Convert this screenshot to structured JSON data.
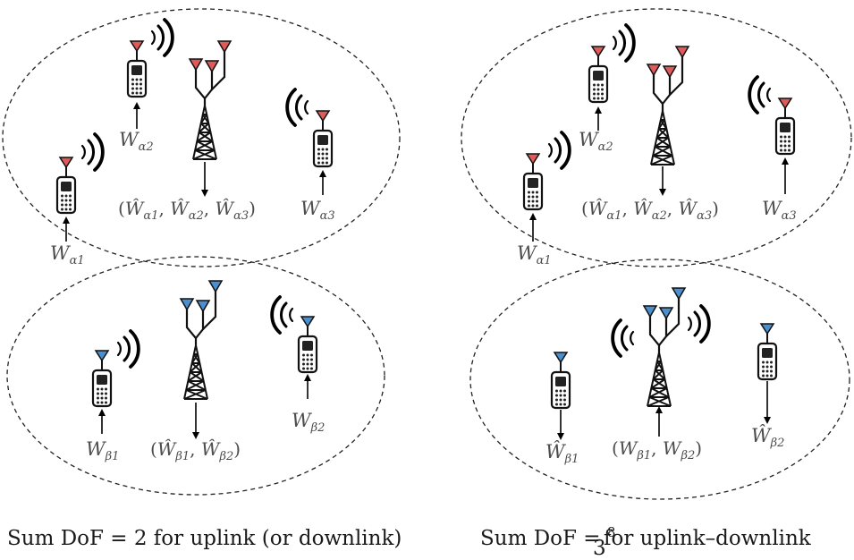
{
  "colors": {
    "alpha_antenna": "#e05a5a",
    "beta_antenna": "#4a8fd0",
    "ink": "#111111",
    "label": "#4d4d4d"
  },
  "icons": [
    "phone-icon",
    "base-station-icon",
    "radio-wave-icon",
    "antenna-icon"
  ],
  "left": {
    "alpha_users": [
      {
        "id": "alpha1",
        "label_main": "W",
        "label_sub": "α1"
      },
      {
        "id": "alpha2",
        "label_main": "W",
        "label_sub": "α2"
      },
      {
        "id": "alpha3",
        "label_main": "W",
        "label_sub": "α3"
      }
    ],
    "alpha_bs": {
      "label": "(Ŵ",
      "parts": [
        "α1",
        "α2",
        "α3"
      ]
    },
    "beta_users": [
      {
        "id": "beta1",
        "label_main": "W",
        "label_sub": "β1"
      },
      {
        "id": "beta2",
        "label_main": "W",
        "label_sub": "β2"
      }
    ],
    "beta_bs": {
      "parts": [
        "β1",
        "β2"
      ]
    },
    "caption": "Sum DoF = 2 for uplink (or downlink)"
  },
  "right": {
    "alpha_users": [
      {
        "id": "alpha1",
        "label_main": "W",
        "label_sub": "α1"
      },
      {
        "id": "alpha2",
        "label_main": "W",
        "label_sub": "α2"
      },
      {
        "id": "alpha3",
        "label_main": "W",
        "label_sub": "α3"
      }
    ],
    "alpha_bs": {
      "parts": [
        "α1",
        "α2",
        "α3"
      ]
    },
    "beta_users": [
      {
        "id": "beta1",
        "label_main": "Ŵ",
        "label_sub": "β1"
      },
      {
        "id": "beta2",
        "label_main": "Ŵ",
        "label_sub": "β2"
      }
    ],
    "beta_bs": {
      "parts": [
        "β1",
        "β2"
      ]
    },
    "caption_prefix": "Sum DoF = ",
    "caption_frac_num": "8",
    "caption_frac_den": "3",
    "caption_suffix": " for uplink–downlink"
  }
}
